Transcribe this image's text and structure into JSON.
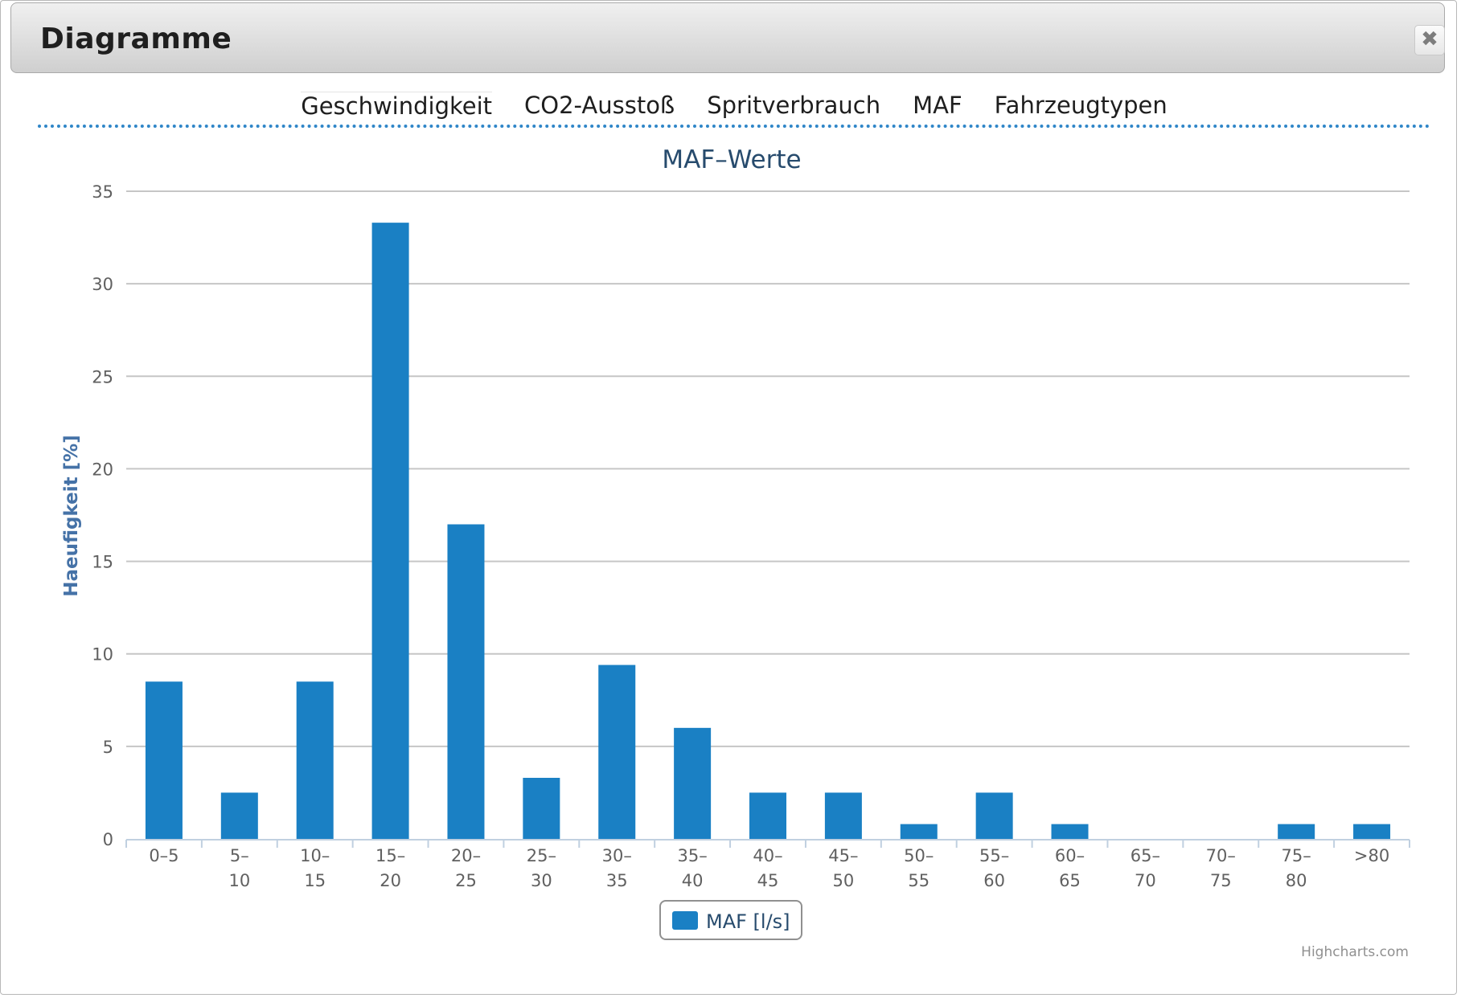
{
  "dialog": {
    "title": "Diagramme",
    "close_icon": "close-icon"
  },
  "tabs": [
    {
      "label": "Geschwindigkeit",
      "active": true
    },
    {
      "label": "CO2-Ausstoß",
      "active": false
    },
    {
      "label": "Spritverbrauch",
      "active": false
    },
    {
      "label": "MAF",
      "active": false
    },
    {
      "label": "Fahrzeugtypen",
      "active": false
    }
  ],
  "chart_data": {
    "type": "bar",
    "title": "MAF–Werte",
    "ylabel": "Haeufigkeit [%]",
    "xlabel": "",
    "ylim": [
      0,
      35
    ],
    "yticks": [
      0,
      5,
      10,
      15,
      20,
      25,
      30,
      35
    ],
    "grid": true,
    "legend": "bottom-center",
    "categories": [
      [
        "0–5"
      ],
      [
        "5–",
        "10"
      ],
      [
        "10–",
        "15"
      ],
      [
        "15–",
        "20"
      ],
      [
        "20–",
        "25"
      ],
      [
        "25–",
        "30"
      ],
      [
        "30–",
        "35"
      ],
      [
        "35–",
        "40"
      ],
      [
        "40–",
        "45"
      ],
      [
        "45–",
        "50"
      ],
      [
        "50–",
        "55"
      ],
      [
        "55–",
        "60"
      ],
      [
        "60–",
        "65"
      ],
      [
        "65–",
        "70"
      ],
      [
        "70–",
        "75"
      ],
      [
        "75–",
        "80"
      ],
      [
        ">80"
      ]
    ],
    "series": [
      {
        "name": "MAF [l/s]",
        "color": "#1a80c4",
        "values": [
          8.5,
          2.5,
          8.5,
          33.3,
          17.0,
          3.3,
          9.4,
          6.0,
          2.5,
          2.5,
          0.8,
          2.5,
          0.8,
          0,
          0,
          0.8,
          0.8
        ]
      }
    ],
    "credits": "Highcharts.com"
  },
  "colors": {
    "bar": "#1a80c4",
    "title": "#274b6d",
    "axis_title": "#4572a7",
    "tab_underline": "#2f86c8"
  }
}
